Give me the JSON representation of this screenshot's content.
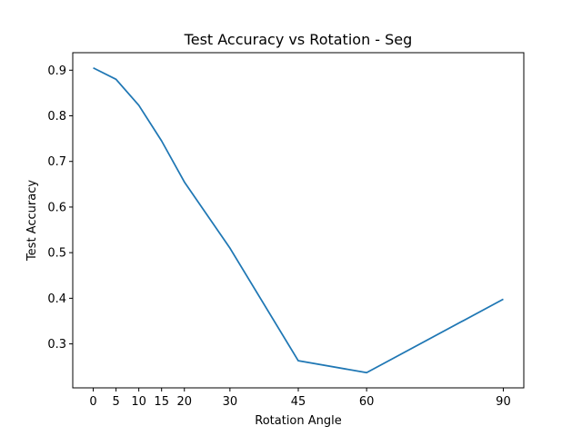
{
  "chart_data": {
    "type": "line",
    "title": "Test Accuracy vs Rotation - Seg",
    "xlabel": "Rotation Angle",
    "ylabel": "Test Accuracy",
    "x": [
      0,
      5,
      10,
      15,
      20,
      30,
      45,
      60,
      90
    ],
    "series": [
      {
        "values": [
          0.905,
          0.88,
          0.823,
          0.745,
          0.655,
          0.51,
          0.263,
          0.237,
          0.398
        ],
        "color": "#1f77b4"
      }
    ],
    "xticks": [
      0,
      5,
      10,
      15,
      20,
      30,
      45,
      60,
      90
    ],
    "xtick_labels": [
      "0",
      "5",
      "10",
      "15",
      "20",
      "30",
      "45",
      "60",
      "90"
    ],
    "yticks": [
      0.3,
      0.4,
      0.5,
      0.6,
      0.7,
      0.8,
      0.9
    ],
    "ytick_labels": [
      "0.3",
      "0.4",
      "0.5",
      "0.6",
      "0.7",
      "0.8",
      "0.9"
    ],
    "xlim": [
      -4.5,
      94.5
    ],
    "ylim": [
      0.2036,
      0.9384
    ],
    "grid": false,
    "legend": "none"
  }
}
